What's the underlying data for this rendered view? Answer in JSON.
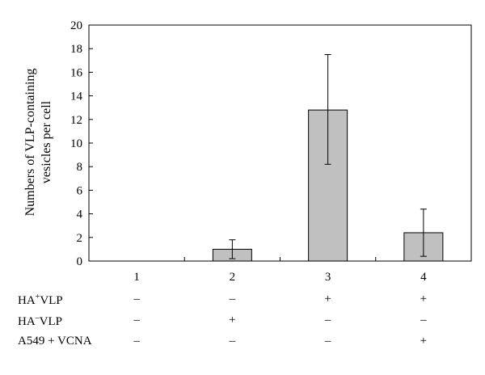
{
  "chart_data": {
    "type": "bar",
    "categories": [
      "1",
      "2",
      "3",
      "4"
    ],
    "values": [
      0,
      1.0,
      12.8,
      2.4
    ],
    "errors_upper": [
      0,
      0.8,
      4.7,
      2.0
    ],
    "errors_lower": [
      0,
      0.8,
      4.6,
      2.0
    ],
    "ylabel": "Numbers of VLP-containing vesicles per cell",
    "ylabel_lines": [
      "Numbers of VLP-containing",
      "vesicles per cell"
    ],
    "ylim": [
      0,
      20
    ],
    "yticks": [
      "0",
      "2",
      "4",
      "6",
      "8",
      "10",
      "12",
      "14",
      "16",
      "18",
      "20"
    ],
    "bar_color": "#c0c0c0",
    "grid": false
  },
  "conditions": [
    {
      "label_main": "HA",
      "label_sup": "+",
      "label_rest": "VLP",
      "signs": [
        "–",
        "–",
        "+",
        "+"
      ]
    },
    {
      "label_main": "HA",
      "label_sup": "–",
      "label_rest": "VLP",
      "signs": [
        "–",
        "+",
        "–",
        "–"
      ]
    },
    {
      "label_main": "A549 + VCNA",
      "label_sup": "",
      "label_rest": "",
      "signs": [
        "–",
        "–",
        "–",
        "+"
      ]
    }
  ]
}
